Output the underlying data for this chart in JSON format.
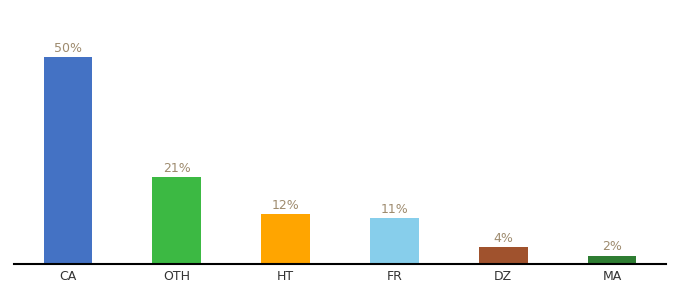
{
  "categories": [
    "CA",
    "OTH",
    "HT",
    "FR",
    "DZ",
    "MA"
  ],
  "values": [
    50,
    21,
    12,
    11,
    4,
    2
  ],
  "bar_colors": [
    "#4472C4",
    "#3CB943",
    "#FFA500",
    "#87CEEB",
    "#A0522D",
    "#2E7D32"
  ],
  "label_color": "#9E8B6E",
  "ylim": [
    0,
    58
  ],
  "background_color": "#ffffff",
  "label_fontsize": 9,
  "tick_fontsize": 9,
  "bar_width": 0.45
}
